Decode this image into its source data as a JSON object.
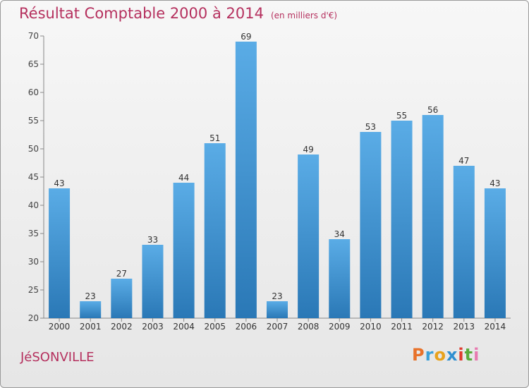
{
  "header": {
    "title": "Résultat Comptable 2000 à 2014",
    "subtitle": "(en milliers d'€)"
  },
  "footer": {
    "place": "JéSONVILLE",
    "brand": "Proxiti",
    "brand_colors": [
      "#e8722a",
      "#3aa0d8",
      "#e8a21c",
      "#2f8fd0",
      "#e03a2e",
      "#5aab3c",
      "#e87ab0"
    ]
  },
  "colors": {
    "title": "#b5305e",
    "bar_top": "#5aace6",
    "bar_bottom": "#2a78b6"
  },
  "chart_data": {
    "type": "bar",
    "categories": [
      "2000",
      "2001",
      "2002",
      "2003",
      "2004",
      "2005",
      "2006",
      "2007",
      "2008",
      "2009",
      "2010",
      "2011",
      "2012",
      "2013",
      "2014"
    ],
    "values": [
      43,
      23,
      27,
      33,
      44,
      51,
      69,
      23,
      49,
      34,
      53,
      55,
      56,
      47,
      43
    ],
    "title": "Résultat Comptable 2000 à 2014",
    "ylim": [
      20,
      70
    ],
    "yticks": [
      20,
      25,
      30,
      35,
      40,
      45,
      50,
      55,
      60,
      65,
      70
    ],
    "grid": false,
    "data_labels": true
  }
}
